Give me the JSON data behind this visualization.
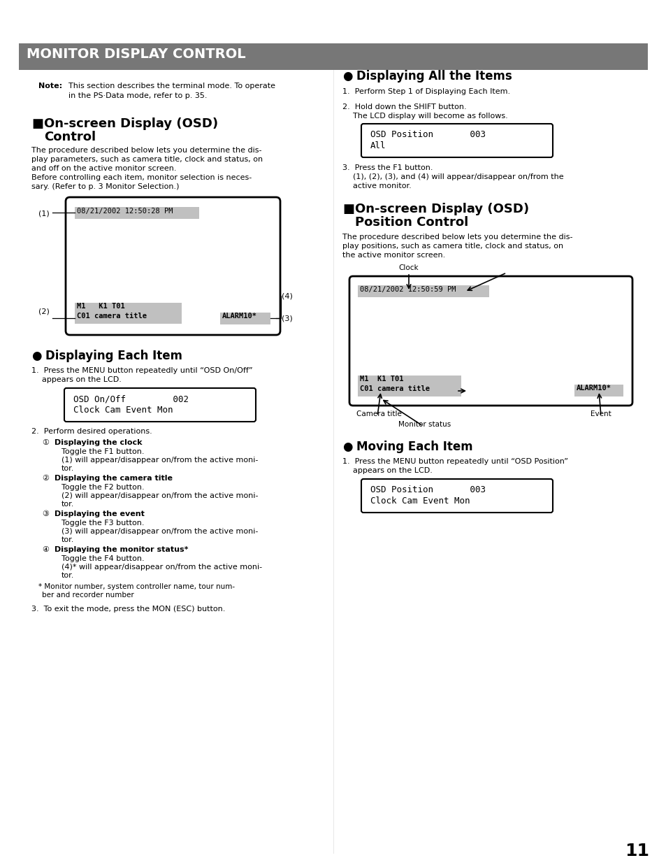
{
  "page_bg": "#ffffff",
  "header_bg": "#777777",
  "header_text": "MONITOR DISPLAY CONTROL",
  "header_text_color": "#ffffff",
  "page_number": "11",
  "monitor_box_datetime": "08/21/2002 12:50:28 PM",
  "monitor2_datetime": "08/21/2002 12:50:59 PM",
  "lcd_box1_line1": "OSD On/Off         002",
  "lcd_box1_line2": "Clock Cam Event Mon",
  "lcd_box2_line1": "OSD Position       003",
  "lcd_box2_line2": "All",
  "lcd_box3_line1": "OSD Position       003",
  "lcd_box3_line2": "Clock Cam Event Mon",
  "highlight_color": "#c0c0c0",
  "box_edge": "#000000",
  "text_color": "#000000"
}
